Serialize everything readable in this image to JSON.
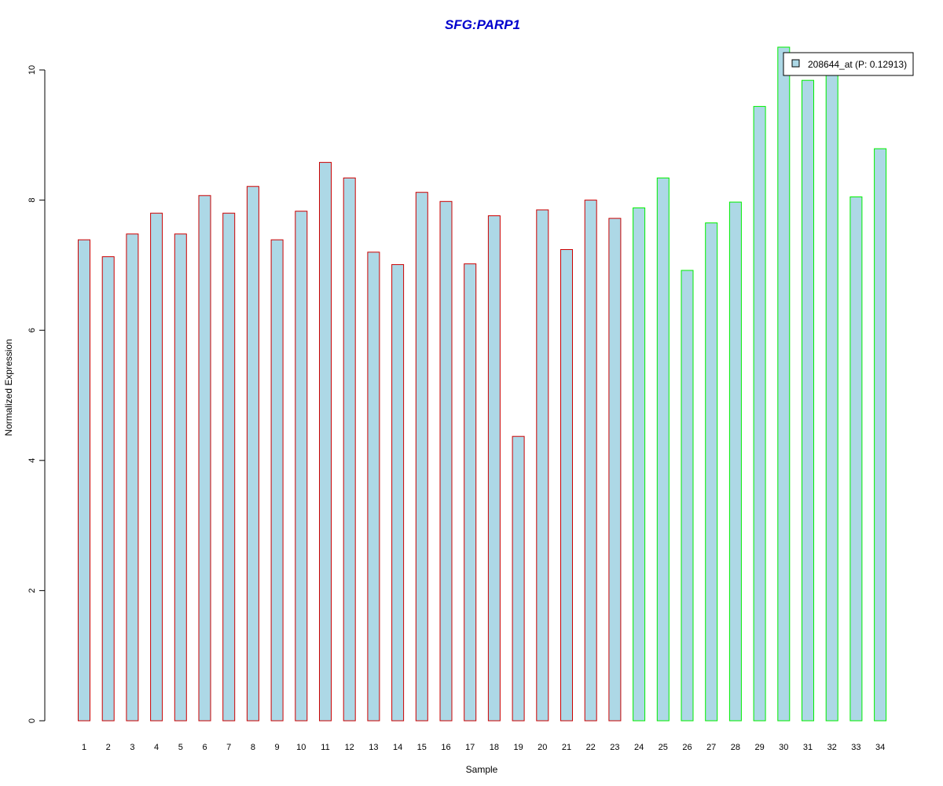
{
  "chart_data": {
    "type": "bar",
    "title": "SFG:PARP1",
    "title_color": "#0000cd",
    "xlabel": "Sample",
    "ylabel": "Normalized Expression",
    "ylim": [
      0,
      10
    ],
    "yticks": [
      0,
      2,
      4,
      6,
      8,
      10
    ],
    "grid": false,
    "legend_position": "top-right",
    "legend": {
      "label": "208644_at (P: 0.12913)",
      "fill": "#add8e6"
    },
    "bar_fill": "#add8e6",
    "group_colors": {
      "group1": "#cc0000",
      "group2": "#00ee00"
    },
    "categories": [
      "1",
      "2",
      "3",
      "4",
      "5",
      "6",
      "7",
      "8",
      "9",
      "10",
      "11",
      "12",
      "13",
      "14",
      "15",
      "16",
      "17",
      "18",
      "19",
      "20",
      "21",
      "22",
      "23",
      "24",
      "25",
      "26",
      "27",
      "28",
      "29",
      "30",
      "31",
      "32",
      "33",
      "34"
    ],
    "groups": [
      "group1",
      "group1",
      "group1",
      "group1",
      "group1",
      "group1",
      "group1",
      "group1",
      "group1",
      "group1",
      "group1",
      "group1",
      "group1",
      "group1",
      "group1",
      "group1",
      "group1",
      "group1",
      "group1",
      "group1",
      "group1",
      "group1",
      "group1",
      "group2",
      "group2",
      "group2",
      "group2",
      "group2",
      "group2",
      "group2",
      "group2",
      "group2",
      "group2",
      "group2"
    ],
    "series": [
      {
        "values": [
          7.39,
          7.13,
          7.48,
          7.8,
          7.48,
          8.07,
          7.8,
          8.21,
          7.39,
          7.83,
          8.58,
          8.34,
          7.2,
          7.01,
          8.12,
          7.98,
          7.02,
          7.76,
          4.37,
          7.85,
          7.24,
          8.0,
          7.72,
          7.88,
          8.34,
          6.92,
          7.65,
          7.97,
          9.44,
          10.35,
          9.84,
          9.95,
          8.05,
          8.79
        ]
      }
    ]
  }
}
